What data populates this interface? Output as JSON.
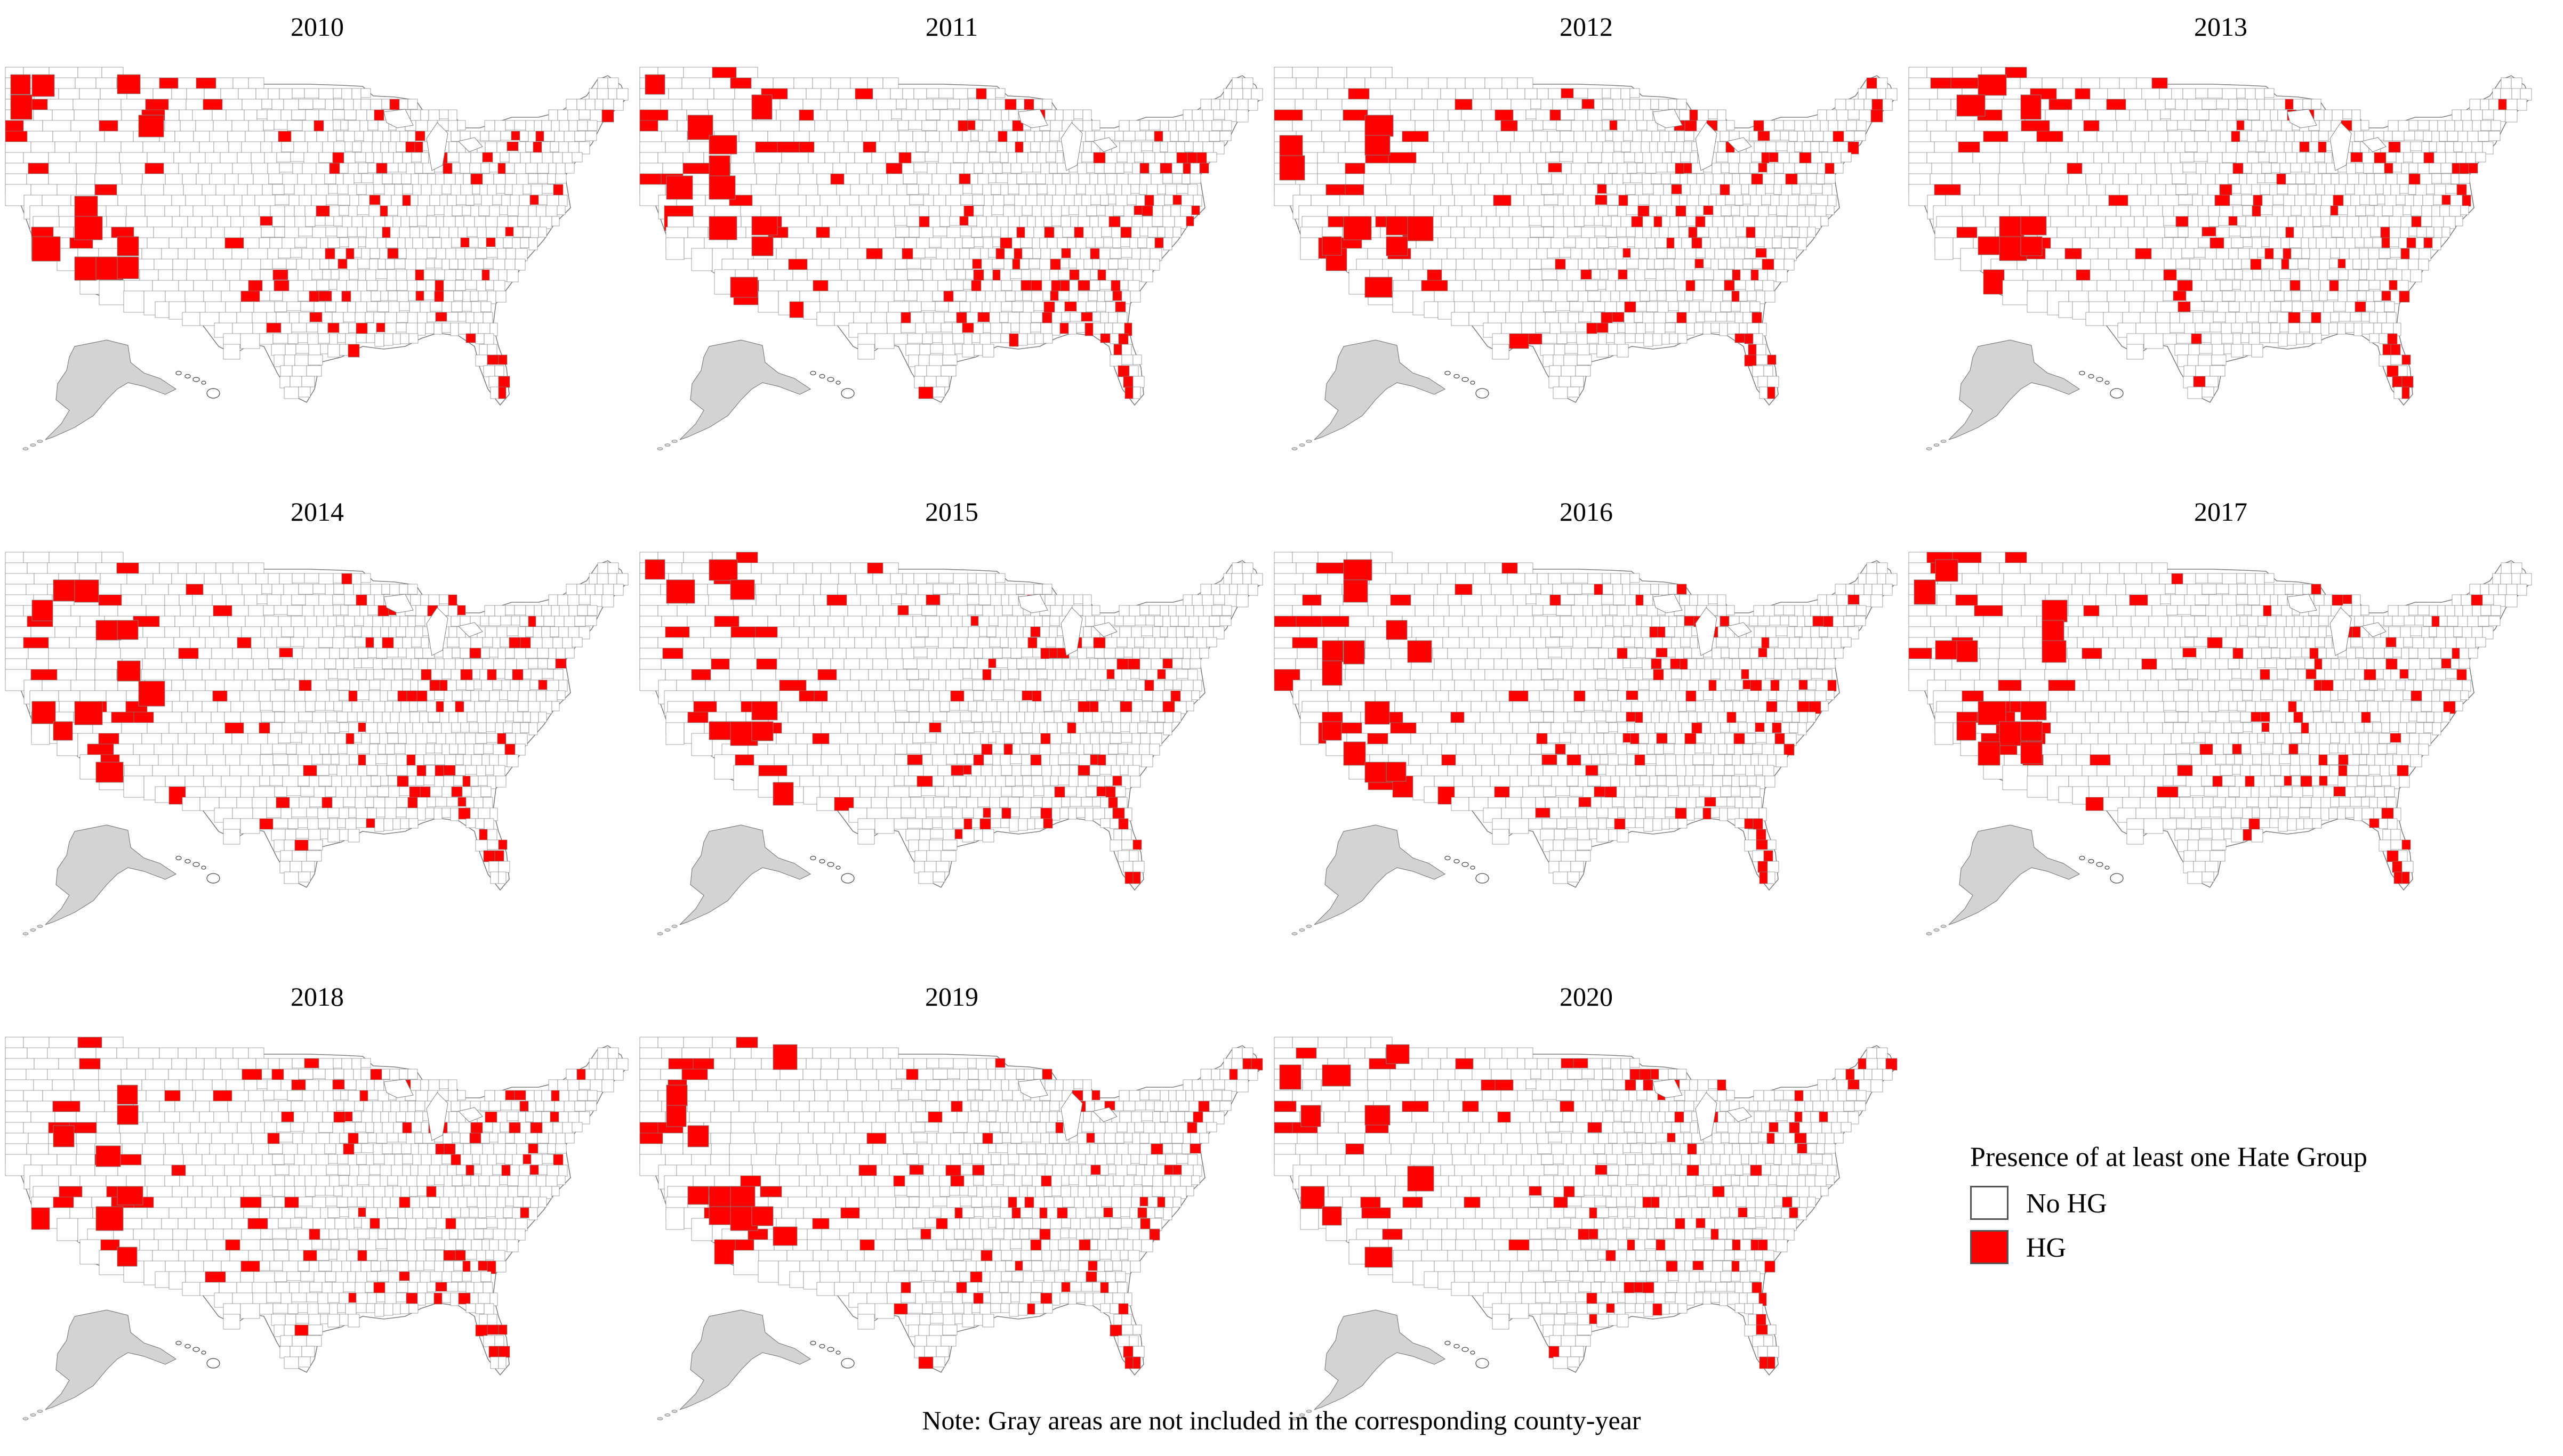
{
  "figure": {
    "panels": [
      {
        "year": "2010"
      },
      {
        "year": "2011"
      },
      {
        "year": "2012"
      },
      {
        "year": "2013"
      },
      {
        "year": "2014"
      },
      {
        "year": "2015"
      },
      {
        "year": "2016"
      },
      {
        "year": "2017"
      },
      {
        "year": "2018"
      },
      {
        "year": "2019"
      },
      {
        "year": "2020"
      }
    ],
    "legend": {
      "title": "Presence of at least one Hate Group",
      "items": [
        {
          "label": "No HG",
          "color": "#ffffff"
        },
        {
          "label": "HG",
          "color": "#ff0000"
        }
      ]
    },
    "note": "Note: Gray areas are not included in the corresponding county-year"
  },
  "colors": {
    "hg": "#ff0000",
    "no_hg": "#ffffff",
    "excluded": "#d3d3d3",
    "county_border": "#7f7f7f"
  }
}
